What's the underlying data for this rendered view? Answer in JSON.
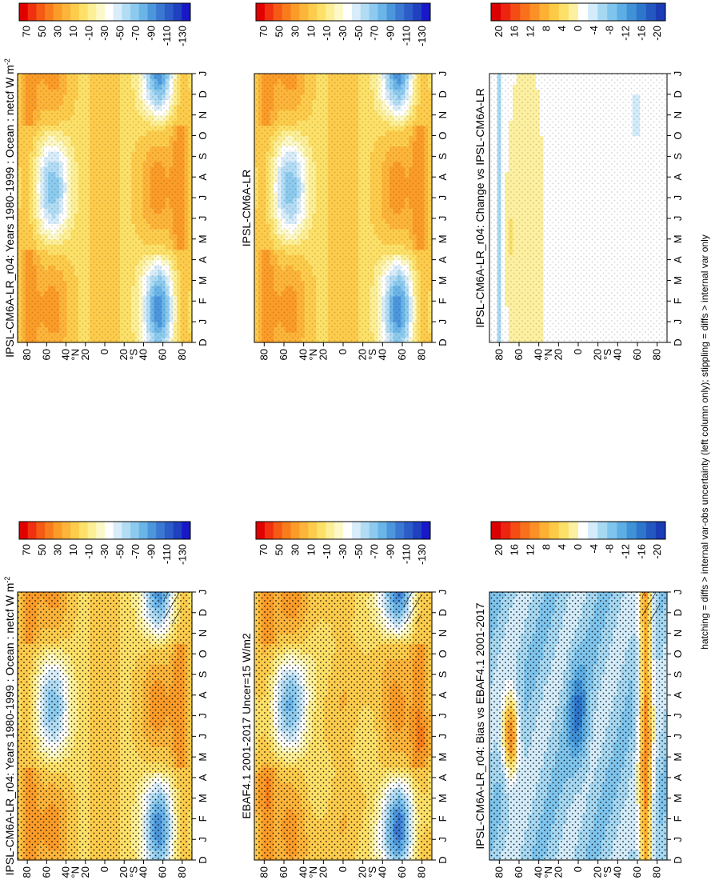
{
  "figure": {
    "footnote": "hatching = diffs > internal var-obs uncertainty (left column only); stippling = diffs > internal var only"
  },
  "palettes": {
    "absolute": [
      "#e00000",
      "#f03010",
      "#f55a14",
      "#f87c1c",
      "#fb9c28",
      "#fdb43a",
      "#fdcc4c",
      "#fde068",
      "#fdef96",
      "#fdf8c8",
      "#ffffff",
      "#d8ecfa",
      "#b2dcf4",
      "#8ccaee",
      "#6ab4e8",
      "#4c96dc",
      "#3a78d2",
      "#2c5cc8",
      "#2040c0",
      "#1818c8"
    ],
    "difference": [
      "#d80000",
      "#ec2410",
      "#f44c14",
      "#f8701c",
      "#fb9026",
      "#fdb034",
      "#fdca48",
      "#fde068",
      "#fdf0a0",
      "#ffffff",
      "#d4ecfa",
      "#a6d8f2",
      "#7ec4ec",
      "#5caee4",
      "#4092d8",
      "#2e76cc",
      "#2458c0",
      "#1a3cb4"
    ]
  },
  "chart_data": [
    {
      "type": "heatmap",
      "title": "IPSL-CM6A-LR_r04: Years 1980-1999 : Ocean : netcf W m",
      "title_superscript": "-2",
      "x_axis": {
        "ticks": [
          "D",
          "J",
          "F",
          "M",
          "A",
          "M",
          "J",
          "J",
          "A",
          "S",
          "O",
          "N",
          "D",
          "J"
        ]
      },
      "y_axis": {
        "ticks": [
          "80",
          "60",
          "40",
          "20",
          "0",
          "20",
          "40",
          "60",
          "80"
        ],
        "unit_labels": {
          "N": "°N",
          "S": "°S"
        },
        "ylim": [
          -90,
          90
        ]
      },
      "colorbar": {
        "ticks": [
          "70",
          "50",
          "30",
          "10",
          "-10",
          "-30",
          "-50",
          "-70",
          "-90",
          "-110",
          "-130"
        ],
        "range": [
          80,
          -140
        ]
      },
      "overlays": [
        "stippling",
        "hatching"
      ]
    },
    {
      "type": "heatmap",
      "title": "IPSL-CM6A-LR_r04: Years 1980-1999 : Ocean : netcf W m",
      "title_superscript": "-2",
      "x_axis": {
        "ticks": [
          "D",
          "J",
          "F",
          "M",
          "A",
          "M",
          "J",
          "J",
          "A",
          "S",
          "O",
          "N",
          "D",
          "J"
        ]
      },
      "y_axis": {
        "ticks": [
          "80",
          "60",
          "40",
          "20",
          "0",
          "20",
          "40",
          "60",
          "80"
        ],
        "unit_labels": {
          "N": "°N",
          "S": "°S"
        },
        "ylim": [
          -90,
          90
        ]
      },
      "colorbar": {
        "ticks": [
          "70",
          "50",
          "30",
          "10",
          "-10",
          "-30",
          "-50",
          "-70",
          "-90",
          "-110",
          "-130"
        ],
        "range": [
          80,
          -140
        ]
      },
      "overlays": [
        "stippling"
      ]
    },
    {
      "type": "heatmap",
      "title": "EBAF4.1 2001-2017 Uncer=15 W/m2",
      "x_axis": {
        "ticks": [
          "D",
          "J",
          "F",
          "M",
          "A",
          "M",
          "J",
          "J",
          "A",
          "S",
          "O",
          "N",
          "D",
          "J"
        ]
      },
      "y_axis": {
        "ticks": [
          "80",
          "60",
          "40",
          "20",
          "0",
          "20",
          "40",
          "60",
          "80"
        ],
        "unit_labels": {
          "N": "°N",
          "S": "°S"
        },
        "ylim": [
          -90,
          90
        ]
      },
      "colorbar": {
        "ticks": [
          "70",
          "50",
          "30",
          "10",
          "-10",
          "-30",
          "-50",
          "-70",
          "-90",
          "-110",
          "-130"
        ],
        "range": [
          80,
          -140
        ]
      },
      "overlays": [
        "stippling",
        "hatching"
      ]
    },
    {
      "type": "heatmap",
      "title": "IPSL-CM6A-LR",
      "x_axis": {
        "ticks": [
          "D",
          "J",
          "F",
          "M",
          "A",
          "M",
          "J",
          "J",
          "A",
          "S",
          "O",
          "N",
          "D",
          "J"
        ]
      },
      "y_axis": {
        "ticks": [
          "80",
          "60",
          "40",
          "20",
          "0",
          "20",
          "40",
          "60",
          "80"
        ],
        "unit_labels": {
          "N": "°N",
          "S": "°S"
        },
        "ylim": [
          -90,
          90
        ]
      },
      "colorbar": {
        "ticks": [
          "70",
          "50",
          "30",
          "10",
          "-10",
          "-30",
          "-50",
          "-70",
          "-90",
          "-110",
          "-130"
        ],
        "range": [
          80,
          -140
        ]
      },
      "overlays": [
        "stippling"
      ]
    },
    {
      "type": "heatmap",
      "title": "IPSL-CM6A-LR_r04: Bias vs EBAF4.1 2001-2017",
      "x_axis": {
        "ticks": [
          "D",
          "J",
          "F",
          "M",
          "A",
          "M",
          "J",
          "J",
          "A",
          "S",
          "O",
          "N",
          "D",
          "J"
        ]
      },
      "y_axis": {
        "ticks": [
          "80",
          "60",
          "40",
          "20",
          "0",
          "20",
          "40",
          "60",
          "80"
        ],
        "unit_labels": {
          "N": "°N",
          "S": "°S"
        },
        "ylim": [
          -90,
          90
        ]
      },
      "colorbar": {
        "ticks": [
          "20",
          "16",
          "12",
          "8",
          "4",
          "0",
          "-4",
          "-8",
          "-12",
          "-16",
          "-20"
        ],
        "range": [
          22,
          -22
        ]
      },
      "overlays": [
        "stippling",
        "hatching"
      ]
    },
    {
      "type": "heatmap",
      "title": "IPSL-CM6A-LR_r04: Change vs IPSL-CM6A-LR",
      "x_axis": {
        "ticks": [
          "D",
          "J",
          "F",
          "M",
          "A",
          "M",
          "J",
          "J",
          "A",
          "S",
          "O",
          "N",
          "D",
          "J"
        ]
      },
      "y_axis": {
        "ticks": [
          "80",
          "60",
          "40",
          "20",
          "0",
          "20",
          "40",
          "60",
          "80"
        ],
        "unit_labels": {
          "N": "°N",
          "S": "°S"
        },
        "ylim": [
          -90,
          90
        ]
      },
      "colorbar": {
        "ticks": [
          "20",
          "16",
          "12",
          "8",
          "4",
          "0",
          "-4",
          "-8",
          "-12",
          "-16",
          "-20"
        ],
        "range": [
          22,
          -22
        ]
      },
      "overlays": [
        "stippling"
      ]
    }
  ]
}
